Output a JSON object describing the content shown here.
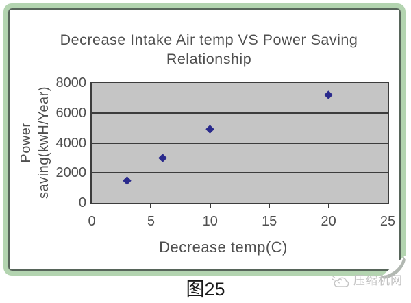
{
  "chart_data": {
    "type": "scatter",
    "title": "Decrease Intake Air temp VS Power Saving Relationship",
    "title_lines": [
      "Decrease Intake Air temp VS Power Saving",
      "Relationship"
    ],
    "xlabel": "Decrease temp(C)",
    "ylabel": "Power saving(kwH/Year)",
    "ylabel_lines": [
      "Power",
      "saving(kwH/Year)"
    ],
    "points": [
      {
        "x": 3,
        "y": 1500
      },
      {
        "x": 6,
        "y": 3000
      },
      {
        "x": 10,
        "y": 4900
      },
      {
        "x": 20,
        "y": 7200
      }
    ],
    "xlim": [
      0,
      25
    ],
    "ylim": [
      0,
      8000
    ],
    "xticks": [
      0,
      5,
      10,
      15,
      20,
      25
    ],
    "yticks": [
      0,
      2000,
      4000,
      6000,
      8000
    ],
    "grid": "horizontal",
    "legend": "none",
    "marker": "diamond",
    "colors": {
      "marker": "#2a2a8c",
      "plot_bg": "#c5c5c5",
      "grid": "#3c3c3c",
      "axis_text": "#4f4f4f",
      "frame_green": "#b3d4b0",
      "frame_line": "#57655a",
      "watermark": "#c2c2c2"
    }
  },
  "caption": "图25",
  "watermark": {
    "icon": "cloud-logo-icon",
    "text": "压缩机网"
  }
}
